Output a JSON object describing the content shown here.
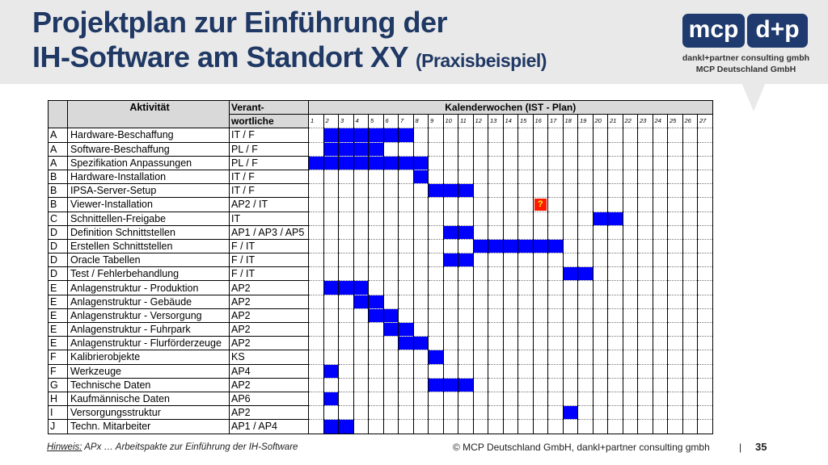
{
  "title": {
    "line1": "Projektplan zur Einführung der",
    "line2": "IH-Software am Standort XY",
    "suffix": "(Praxisbeispiel)"
  },
  "logo": {
    "left": "mcp",
    "right": "d+p",
    "tagline1": "dankl+partner consulting gmbh",
    "tagline2": "MCP Deutschland GmbH"
  },
  "colors": {
    "header_bg": "#e9e9e9",
    "title": "#1f3864",
    "logo_bg": "#1e3a6e",
    "bar": "#0000ff",
    "question": "#ff1a00"
  },
  "table": {
    "col_activity": "Aktivität",
    "col_resp_1": "Verant-",
    "col_resp_2": "wortliche",
    "col_weeks": "Kalenderwochen (IST - Plan)",
    "weeks": [
      "1",
      "2",
      "3",
      "4",
      "5",
      "6",
      "7",
      "8",
      "9",
      "10",
      "11",
      "12",
      "13",
      "14",
      "15",
      "16",
      "17",
      "18",
      "19",
      "20",
      "21",
      "22",
      "23",
      "24",
      "25",
      "26",
      "27"
    ],
    "rows": [
      {
        "code": "A",
        "activity": "Hardware-Beschaffung",
        "resp": "IT / F",
        "weeks": [
          2,
          3,
          4,
          5,
          6,
          7
        ]
      },
      {
        "code": "A",
        "activity": "Software-Beschaffung",
        "resp": "PL / F",
        "weeks": [
          2,
          3,
          4,
          5
        ]
      },
      {
        "code": "A",
        "activity": "Spezifikation Anpassungen",
        "resp": "PL / F",
        "weeks": [
          1,
          2,
          3,
          4,
          5,
          6,
          7,
          8
        ]
      },
      {
        "code": "B",
        "activity": "Hardware-Installation",
        "resp": "IT / F",
        "weeks": [
          8
        ]
      },
      {
        "code": "B",
        "activity": "IPSA-Server-Setup",
        "resp": "IT / F",
        "weeks": [
          9,
          10,
          11
        ]
      },
      {
        "code": "B",
        "activity": "Viewer-Installation",
        "resp": "AP2 / IT",
        "weeks": [],
        "question_week": 16,
        "question_mark": "?"
      },
      {
        "code": "C",
        "activity": "Schnittellen-Freigabe",
        "resp": "IT",
        "weeks": [
          20,
          21
        ]
      },
      {
        "code": "D",
        "activity": "Definition Schnittstellen",
        "resp": "AP1 / AP3 / AP5",
        "weeks": [
          10,
          11
        ]
      },
      {
        "code": "D",
        "activity": "Erstellen Schnittstellen",
        "resp": "F / IT",
        "weeks": [
          12,
          13,
          14,
          15,
          16,
          17
        ]
      },
      {
        "code": "D",
        "activity": "Oracle Tabellen",
        "resp": "F / IT",
        "weeks": [
          10,
          11
        ]
      },
      {
        "code": "D",
        "activity": "Test / Fehlerbehandlung",
        "resp": "F / IT",
        "weeks": [
          18,
          19
        ]
      },
      {
        "code": "E",
        "activity": "Anlagenstruktur - Produktion",
        "resp": "AP2",
        "weeks": [
          2,
          3,
          4
        ]
      },
      {
        "code": "E",
        "activity": "Anlagenstruktur - Gebäude",
        "resp": "AP2",
        "weeks": [
          4,
          5
        ]
      },
      {
        "code": "E",
        "activity": "Anlagenstruktur - Versorgung",
        "resp": "AP2",
        "weeks": [
          5,
          6
        ]
      },
      {
        "code": "E",
        "activity": "Anlagenstruktur - Fuhrpark",
        "resp": "AP2",
        "weeks": [
          6,
          7
        ]
      },
      {
        "code": "E",
        "activity": "Anlagenstruktur - Flurförderzeuge",
        "resp": "AP2",
        "weeks": [
          7,
          8
        ]
      },
      {
        "code": "F",
        "activity": "Kalibrierobjekte",
        "resp": "KS",
        "weeks": [
          9
        ]
      },
      {
        "code": "F",
        "activity": "Werkzeuge",
        "resp": "AP4",
        "weeks": [
          2
        ]
      },
      {
        "code": "G",
        "activity": "Technische Daten",
        "resp": "AP2",
        "weeks": [
          9,
          10,
          11
        ]
      },
      {
        "code": "H",
        "activity": "Kaufmännische Daten",
        "resp": "AP6",
        "weeks": [
          2
        ]
      },
      {
        "code": "I",
        "activity": "Versorgungsstruktur",
        "resp": "AP2",
        "weeks": [
          18
        ]
      },
      {
        "code": "J",
        "activity": "Techn. Mitarbeiter",
        "resp": "AP1 / AP4",
        "weeks": [
          2,
          3
        ]
      }
    ]
  },
  "footer": {
    "hint_label": "Hinweis:",
    "hint_text": " APx … Arbeitspakte zur Einführung der IH-Software",
    "copyright": "© MCP Deutschland GmbH, dankl+partner consulting gmbh",
    "separator": "|",
    "page": "35"
  }
}
